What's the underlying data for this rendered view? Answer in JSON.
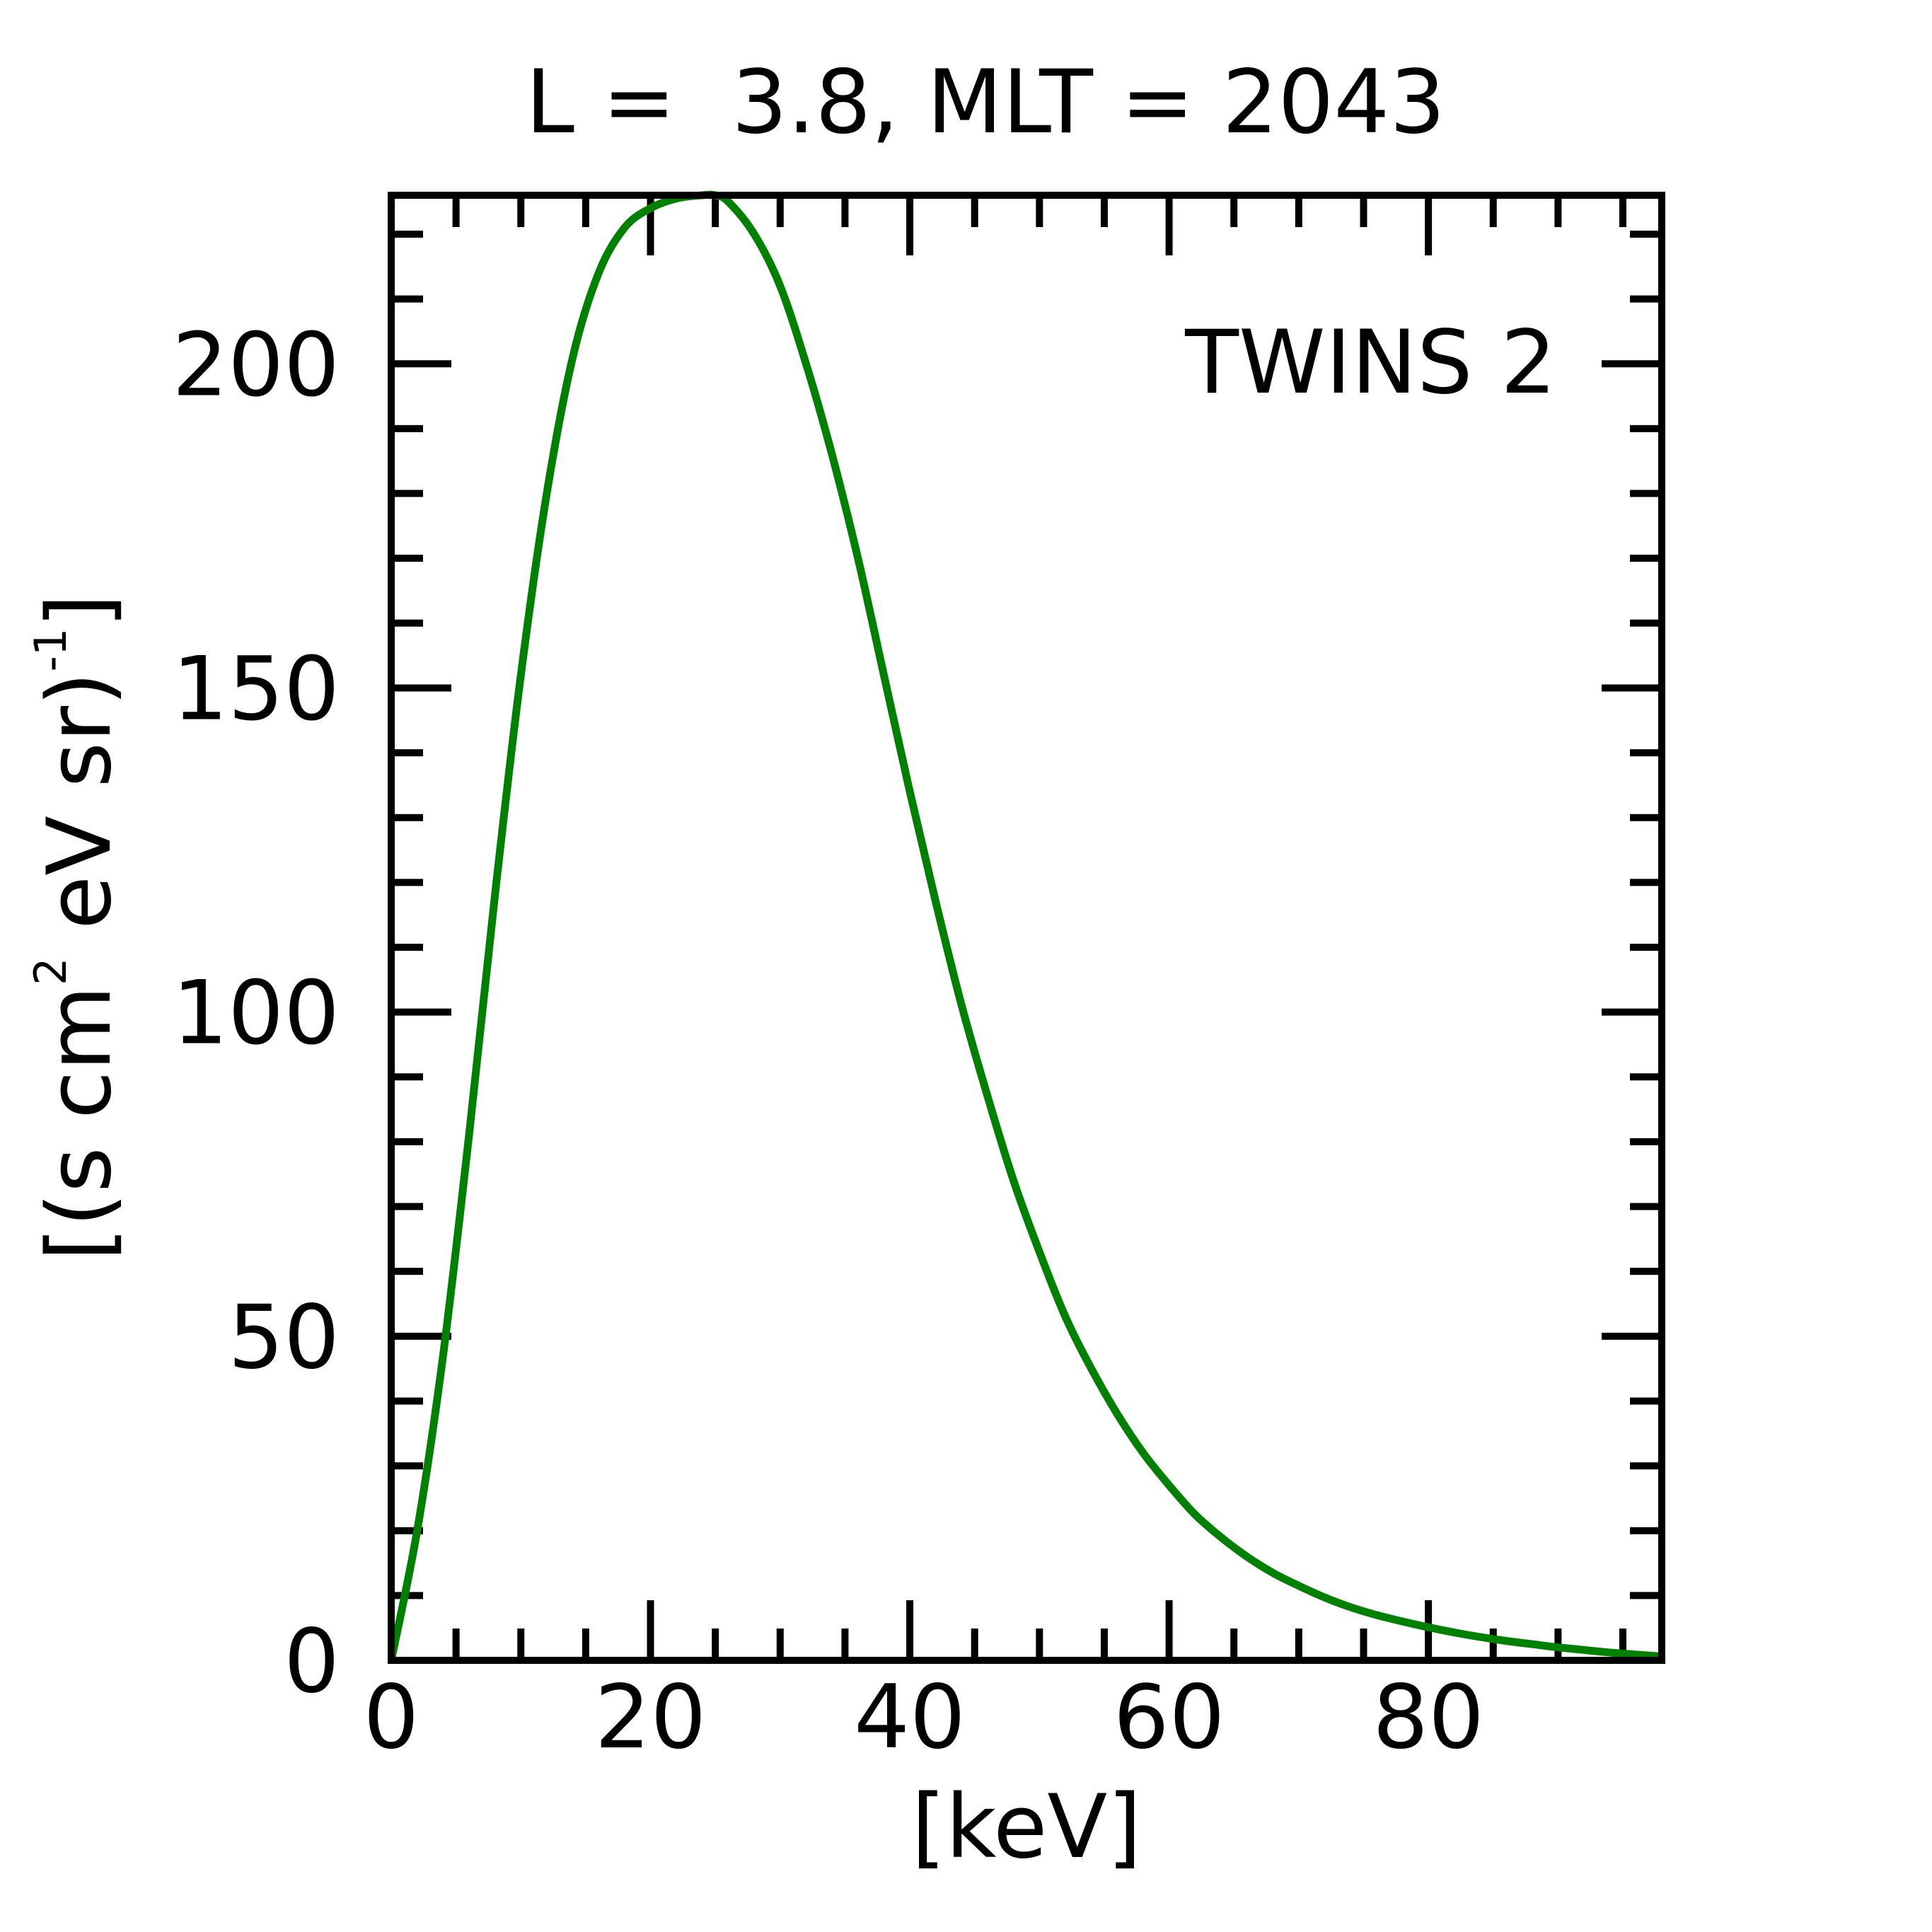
{
  "chart_data": {
    "type": "line",
    "title": "L =  3.8, MLT = 2043",
    "xlabel": "[keV]",
    "ylabel": "[(s cm² eV sr)⁻¹]",
    "ylabel_parts": {
      "p1": "[(s cm",
      "sup1": "2",
      "p2": " eV sr)",
      "sup2": "-1",
      "p3": "]"
    },
    "xlim": [
      0,
      98
    ],
    "ylim": [
      0,
      226
    ],
    "x_ticks": [
      0,
      20,
      40,
      60,
      80
    ],
    "x_tick_labels": [
      "0",
      "20",
      "40",
      "60",
      "80"
    ],
    "x_minor_step": 5,
    "y_ticks": [
      0,
      50,
      100,
      150,
      200
    ],
    "y_tick_labels": [
      "0",
      "50",
      "100",
      "150",
      "200"
    ],
    "y_minor_step": 10,
    "grid": false,
    "legend": {
      "text": "TWINS 2",
      "color": "#008000",
      "position": "top-right"
    },
    "series": [
      {
        "name": "TWINS 2",
        "color": "#008000",
        "x": [
          0,
          2,
          4,
          6,
          8,
          10,
          12,
          14,
          16,
          18,
          20,
          22,
          24,
          25,
          26,
          28,
          30,
          32,
          34,
          36,
          38,
          40,
          42,
          44,
          46,
          48,
          50,
          52,
          54,
          56,
          58,
          60,
          62,
          64,
          66,
          68,
          70,
          72,
          74,
          76,
          78,
          80,
          82,
          84,
          86,
          88,
          90,
          92,
          94,
          96,
          98
        ],
        "values": [
          0,
          20,
          47,
          81,
          118,
          152,
          180,
          201,
          214,
          221,
          224,
          225.5,
          226,
          226,
          225,
          220,
          212,
          200,
          186,
          170,
          152,
          134,
          117,
          101,
          87,
          74,
          63,
          53,
          45,
          38,
          32,
          27,
          22.5,
          19,
          16,
          13.5,
          11.5,
          9.7,
          8.2,
          7,
          6,
          5.1,
          4.3,
          3.6,
          3,
          2.5,
          2,
          1.6,
          1.2,
          0.9,
          0.6
        ]
      }
    ]
  }
}
